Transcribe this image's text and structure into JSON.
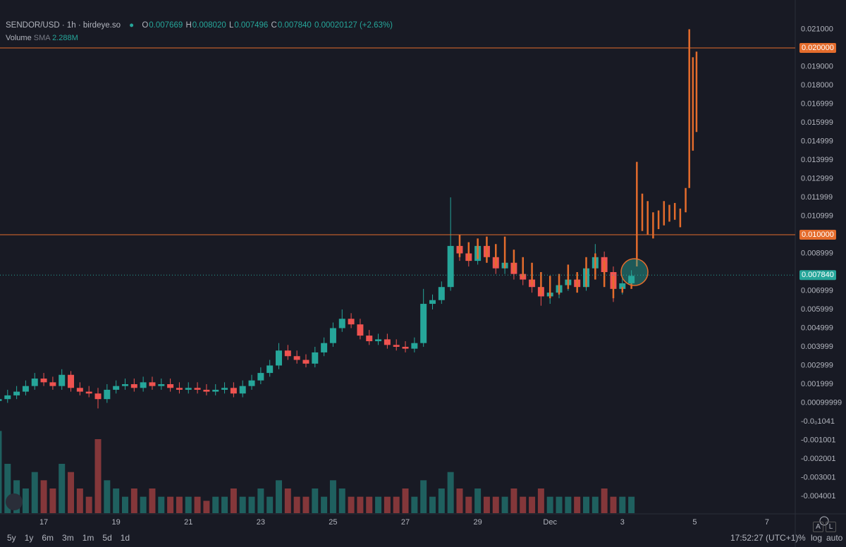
{
  "legend": {
    "symbol": "SENDOR/USD · 1h · birdeye.so",
    "o_label": "O",
    "o": "0.007669",
    "h_label": "H",
    "h": "0.008020",
    "l_label": "L",
    "l": "0.007496",
    "c_label": "C",
    "c": "0.007840",
    "change": "0.00020127 (+2.63%)",
    "volume_label": "Volume",
    "sma_label": "SMA",
    "sma": "2.288M"
  },
  "toolbar": [
    "5y",
    "1y",
    "6m",
    "3m",
    "1m",
    "5d",
    "1d"
  ],
  "footer": {
    "time": "17:52:27 (UTC+1)",
    "percent": "%",
    "log": "log",
    "auto": "auto",
    "a": "A",
    "l": "L"
  },
  "chart_data": {
    "type": "candlestick",
    "up_color": "#26a69a",
    "down_color": "#ef5350",
    "grid": true,
    "xlim": [
      15.79,
      37.78
    ],
    "ylim": [
      -0.004906,
      0.022566
    ],
    "vlim": [
      0,
      12
    ],
    "xticks": [
      17,
      19,
      21,
      23,
      25,
      27,
      29,
      {
        "value": 31,
        "label": "Dec"
      },
      {
        "value": 33,
        "label": "3"
      },
      {
        "value": 35,
        "label": "5"
      },
      {
        "value": 37,
        "label": "7"
      }
    ],
    "yticks": [
      {
        "value": 0.021,
        "label": "0.021000"
      },
      {
        "value": 0.019,
        "label": "0.019000"
      },
      {
        "value": 0.018,
        "label": "0.018000"
      },
      {
        "value": 0.016999,
        "label": "0.016999"
      },
      {
        "value": 0.015999,
        "label": "0.015999"
      },
      {
        "value": 0.014999,
        "label": "0.014999"
      },
      {
        "value": 0.013999,
        "label": "0.013999"
      },
      {
        "value": 0.012999,
        "label": "0.012999"
      },
      {
        "value": 0.011999,
        "label": "0.011999"
      },
      {
        "value": 0.010999,
        "label": "0.010999"
      },
      {
        "value": 0.008999,
        "label": "0.008999"
      },
      {
        "value": 0.006999,
        "label": "0.006999"
      },
      {
        "value": 0.005999,
        "label": "0.005999"
      },
      {
        "value": 0.004999,
        "label": "0.004999"
      },
      {
        "value": 0.003999,
        "label": "0.003999"
      },
      {
        "value": 0.002999,
        "label": "0.002999"
      },
      {
        "value": 0.001999,
        "label": "0.001999"
      },
      {
        "value": 0.00099999,
        "label": "0.00099999"
      },
      {
        "value": -1.041e-05,
        "label": "-0.0₀1041"
      },
      {
        "value": -0.001001,
        "label": "-0.001001"
      },
      {
        "value": -0.002001,
        "label": "-0.002001"
      },
      {
        "value": -0.003001,
        "label": "-0.003001"
      },
      {
        "value": -0.004001,
        "label": "-0.004001"
      }
    ],
    "hlines": [
      {
        "value": 0.02,
        "label": "0.020000",
        "color": "#e46c2c"
      },
      {
        "value": 0.01,
        "label": "0.010000",
        "color": "#e46c2c"
      },
      {
        "value": 0.00784,
        "label": "0.007840",
        "color": "#26a69a",
        "dashed": true
      }
    ],
    "candles": {
      "x": [
        15.75,
        16,
        16.25,
        16.5,
        16.75,
        17,
        17.25,
        17.5,
        17.75,
        18,
        18.25,
        18.5,
        18.75,
        19,
        19.25,
        19.5,
        19.75,
        20,
        20.25,
        20.5,
        20.75,
        21,
        21.25,
        21.5,
        21.75,
        22,
        22.25,
        22.5,
        22.75,
        23,
        23.25,
        23.5,
        23.75,
        24,
        24.25,
        24.5,
        24.75,
        25,
        25.25,
        25.5,
        25.75,
        26,
        26.25,
        26.5,
        26.75,
        27,
        27.25,
        27.5,
        27.75,
        28,
        28.25,
        28.5,
        28.75,
        29,
        29.25,
        29.5,
        29.75,
        30,
        30.25,
        30.5,
        30.75,
        31,
        31.25,
        31.5,
        31.75,
        32,
        32.25,
        32.5,
        32.75,
        33,
        33.25
      ],
      "open": [
        0.0011,
        0.0012,
        0.0014,
        0.0016,
        0.0019,
        0.0023,
        0.0021,
        0.0019,
        0.0025,
        0.0018,
        0.0016,
        0.0015,
        0.0012,
        0.0017,
        0.0019,
        0.002,
        0.0018,
        0.0021,
        0.0019,
        0.002,
        0.0018,
        0.0017,
        0.0018,
        0.0017,
        0.0016,
        0.0017,
        0.0018,
        0.0015,
        0.0019,
        0.0022,
        0.0026,
        0.003,
        0.0038,
        0.0035,
        0.0033,
        0.0031,
        0.0037,
        0.0042,
        0.005,
        0.0055,
        0.0052,
        0.0046,
        0.0043,
        0.0044,
        0.0041,
        0.004,
        0.0039,
        0.0042,
        0.0063,
        0.0065,
        0.0072,
        0.0094,
        0.009,
        0.0086,
        0.0094,
        0.0088,
        0.0082,
        0.0085,
        0.0079,
        0.0076,
        0.0072,
        0.0067,
        0.0069,
        0.0073,
        0.0076,
        0.0072,
        0.0082,
        0.0088,
        0.008,
        0.0071,
        0.0074
      ],
      "high": [
        0.0015,
        0.0017,
        0.0019,
        0.0022,
        0.0026,
        0.0026,
        0.0024,
        0.0028,
        0.0027,
        0.0021,
        0.0019,
        0.0018,
        0.002,
        0.0022,
        0.0023,
        0.0023,
        0.0024,
        0.0024,
        0.0023,
        0.0023,
        0.0021,
        0.0021,
        0.0021,
        0.002,
        0.002,
        0.0021,
        0.0021,
        0.0022,
        0.0025,
        0.0029,
        0.0033,
        0.0042,
        0.0041,
        0.0038,
        0.0036,
        0.004,
        0.0045,
        0.0053,
        0.006,
        0.0058,
        0.0055,
        0.0049,
        0.0047,
        0.0047,
        0.0044,
        0.0043,
        0.0045,
        0.0071,
        0.0068,
        0.0075,
        0.012,
        0.0099,
        0.0093,
        0.0097,
        0.0097,
        0.0091,
        0.0088,
        0.0088,
        0.0082,
        0.0079,
        0.0075,
        0.0072,
        0.0076,
        0.0079,
        0.0079,
        0.0085,
        0.0095,
        0.0091,
        0.0083,
        0.0077,
        0.0081
      ],
      "low": [
        0.0009,
        0.001,
        0.0012,
        0.0014,
        0.0017,
        0.0019,
        0.0017,
        0.0017,
        0.0016,
        0.0014,
        0.0013,
        0.0007,
        0.001,
        0.0015,
        0.0017,
        0.0016,
        0.0016,
        0.0017,
        0.0017,
        0.0016,
        0.0015,
        0.0015,
        0.0015,
        0.0014,
        0.0014,
        0.0015,
        0.0013,
        0.0013,
        0.0017,
        0.002,
        0.0024,
        0.0028,
        0.0033,
        0.0031,
        0.0029,
        0.0029,
        0.0035,
        0.004,
        0.0048,
        0.005,
        0.0044,
        0.0041,
        0.0041,
        0.0039,
        0.0038,
        0.0037,
        0.0037,
        0.004,
        0.006,
        0.0063,
        0.007,
        0.0086,
        0.0083,
        0.0084,
        0.0085,
        0.0079,
        0.0079,
        0.0076,
        0.0073,
        0.0069,
        0.0062,
        0.0063,
        0.0066,
        0.007,
        0.0069,
        0.007,
        0.0079,
        0.0077,
        0.0064,
        0.0068,
        0.0072
      ],
      "close": [
        0.0012,
        0.0014,
        0.0016,
        0.0019,
        0.0023,
        0.0021,
        0.0019,
        0.0025,
        0.0018,
        0.0016,
        0.0015,
        0.0012,
        0.0017,
        0.0019,
        0.002,
        0.0018,
        0.0021,
        0.0019,
        0.002,
        0.0018,
        0.0017,
        0.0018,
        0.0017,
        0.0016,
        0.0017,
        0.0018,
        0.0015,
        0.0019,
        0.0022,
        0.0026,
        0.003,
        0.0038,
        0.0035,
        0.0033,
        0.0031,
        0.0037,
        0.0042,
        0.005,
        0.0055,
        0.0052,
        0.0046,
        0.0043,
        0.0044,
        0.0041,
        0.004,
        0.0039,
        0.0042,
        0.0063,
        0.0065,
        0.0072,
        0.0094,
        0.009,
        0.0086,
        0.0094,
        0.0088,
        0.0082,
        0.0085,
        0.0079,
        0.0076,
        0.0072,
        0.0067,
        0.0069,
        0.0073,
        0.0076,
        0.0072,
        0.0082,
        0.0088,
        0.008,
        0.0071,
        0.0074,
        0.0078
      ],
      "volume": [
        10,
        6,
        4,
        3,
        5,
        4,
        3,
        6,
        5,
        3,
        2,
        9,
        4,
        3,
        2,
        3,
        2,
        3,
        2,
        2,
        2,
        2,
        2,
        1.5,
        2,
        2,
        3,
        2,
        2,
        3,
        2,
        4,
        3,
        2,
        2,
        3,
        2,
        4,
        3,
        2,
        2,
        2,
        2,
        2,
        2,
        3,
        2,
        4,
        2,
        3,
        5,
        3,
        2,
        3,
        2,
        2,
        2,
        3,
        2,
        2,
        3,
        2,
        2,
        2,
        2,
        2,
        2,
        3,
        2,
        2,
        2
      ]
    },
    "overlay": {
      "color": "#e46c2c",
      "x": [
        28.5,
        28.75,
        29,
        29.25,
        29.5,
        29.75,
        30,
        30.25,
        30.5,
        30.75,
        31,
        31.25,
        31.5,
        31.75,
        32,
        32.25,
        32.5,
        32.75,
        33,
        33.25,
        33.4,
        33.55,
        33.7,
        33.85,
        34,
        34.15,
        34.3,
        34.45,
        34.6,
        34.75,
        34.85,
        34.95,
        35.05
      ],
      "high": [
        0.01,
        0.0096,
        0.0098,
        0.0099,
        0.0095,
        0.0099,
        0.0092,
        0.0088,
        0.0085,
        0.008,
        0.0078,
        0.0079,
        0.0084,
        0.008,
        0.0088,
        0.009,
        0.0086,
        0.0078,
        0.0072,
        0.0074,
        0.0139,
        0.0122,
        0.0118,
        0.0112,
        0.0113,
        0.0118,
        0.0116,
        0.0117,
        0.0114,
        0.0125,
        0.021,
        0.0195,
        0.0198
      ],
      "low": [
        0.0088,
        0.0086,
        0.0087,
        0.0085,
        0.0083,
        0.0082,
        0.008,
        0.0077,
        0.0073,
        0.0068,
        0.0066,
        0.0068,
        0.0071,
        0.0069,
        0.0072,
        0.0076,
        0.0072,
        0.0066,
        0.0069,
        0.0071,
        0.0083,
        0.0102,
        0.01,
        0.0098,
        0.0103,
        0.0105,
        0.0107,
        0.0108,
        0.0104,
        0.0112,
        0.0125,
        0.0145,
        0.0155
      ]
    }
  }
}
